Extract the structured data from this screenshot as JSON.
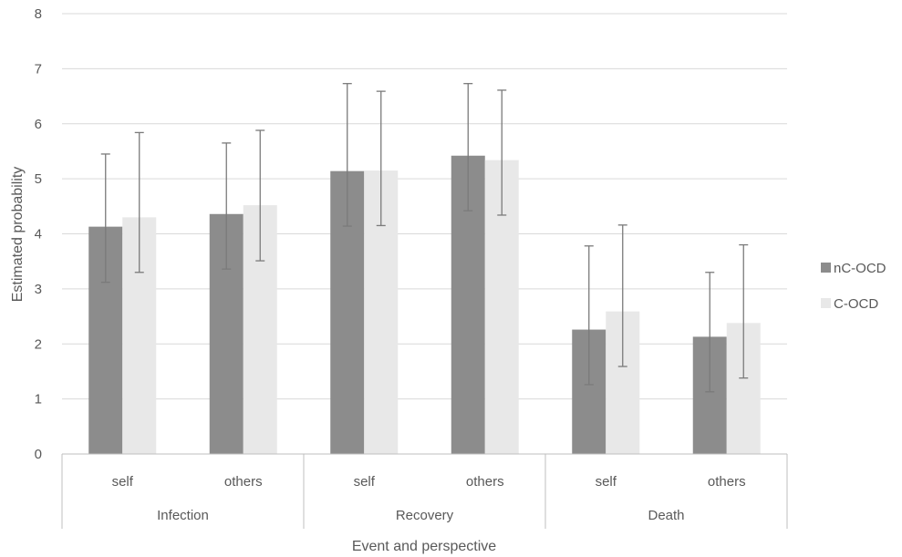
{
  "chart_data": {
    "type": "bar",
    "xlabel": "Event and perspective",
    "ylabel": "Estimated probability",
    "ylim": [
      0,
      8
    ],
    "yticks": [
      0,
      1,
      2,
      3,
      4,
      5,
      6,
      7,
      8
    ],
    "grid": true,
    "legend_position": "right",
    "groups": [
      {
        "label": "Infection",
        "categories": [
          "self",
          "others"
        ]
      },
      {
        "label": "Recovery",
        "categories": [
          "self",
          "others"
        ]
      },
      {
        "label": "Death",
        "categories": [
          "self",
          "others"
        ]
      }
    ],
    "categories": [
      "self",
      "others",
      "self",
      "others",
      "self",
      "others"
    ],
    "series": [
      {
        "name": "nC-OCD",
        "color": "#8c8c8c",
        "values": [
          4.13,
          4.36,
          5.14,
          5.42,
          2.26,
          2.13
        ],
        "error_low": [
          3.12,
          3.36,
          4.14,
          4.42,
          1.26,
          1.13
        ],
        "error_high": [
          5.45,
          5.65,
          6.73,
          6.73,
          3.78,
          3.3
        ]
      },
      {
        "name": "C-OCD",
        "color": "#e8e8e8",
        "values": [
          4.3,
          4.52,
          5.15,
          5.34,
          2.59,
          2.38
        ],
        "error_low": [
          3.3,
          3.51,
          4.15,
          4.34,
          1.59,
          1.38
        ],
        "error_high": [
          5.84,
          5.88,
          6.59,
          6.61,
          4.16,
          3.8
        ]
      }
    ]
  }
}
